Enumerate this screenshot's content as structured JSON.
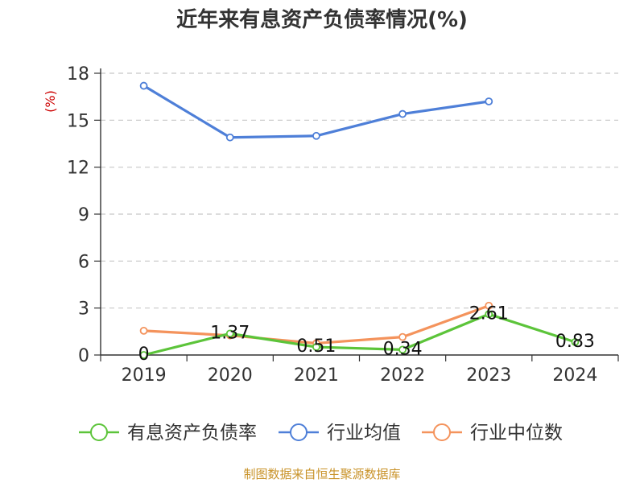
{
  "chart_data": {
    "type": "line",
    "title": "近年来有息资产负债率情况(%)",
    "ylabel": "(%)",
    "xlabel": "",
    "categories": [
      "2019",
      "2020",
      "2021",
      "2022",
      "2023",
      "2024"
    ],
    "ylim": [
      0,
      18
    ],
    "yticks": [
      0,
      3,
      6,
      9,
      12,
      15,
      18
    ],
    "grid": true,
    "legend_position": "bottom",
    "series": [
      {
        "name": "有息资产负债率",
        "color": "#5cc43a",
        "values": [
          0,
          1.37,
          0.51,
          0.34,
          2.61,
          0.83
        ],
        "labels": [
          "0",
          "1.37",
          "0.51",
          "0.34",
          "2.61",
          "0.83"
        ]
      },
      {
        "name": "行业均值",
        "color": "#4e7fd8",
        "values": [
          17.2,
          13.9,
          14.0,
          15.4,
          16.2,
          null
        ]
      },
      {
        "name": "行业中位数",
        "color": "#f4935c",
        "values": [
          1.55,
          1.25,
          0.75,
          1.15,
          3.15,
          null
        ]
      }
    ]
  },
  "footer": {
    "source": "制图数据来自恒生聚源数据库"
  }
}
